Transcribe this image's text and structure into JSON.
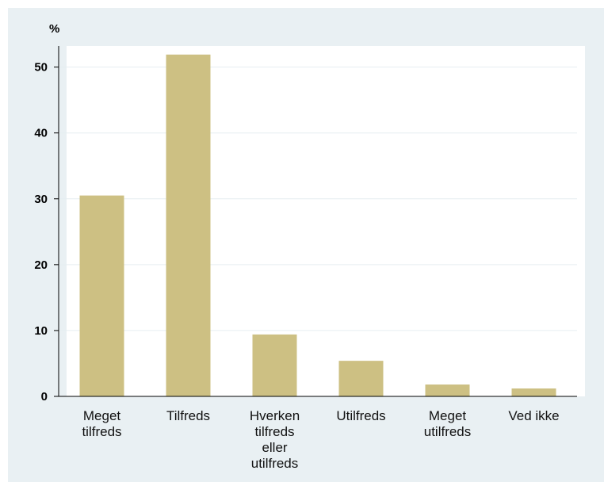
{
  "chart_data": {
    "type": "bar",
    "title": "",
    "xlabel": "",
    "ylabel": "%",
    "categories": [
      [
        "Meget",
        "tilfreds"
      ],
      [
        "Tilfreds"
      ],
      [
        "Hverken",
        "tilfreds",
        "eller",
        "utilfreds"
      ],
      [
        "Utilfreds"
      ],
      [
        "Meget",
        "utilfreds"
      ],
      [
        "Ved ikke"
      ]
    ],
    "values": [
      30.5,
      51.9,
      9.4,
      5.4,
      1.8,
      1.2
    ],
    "ylim": [
      0,
      53
    ],
    "yticks": [
      0,
      10,
      20,
      30,
      40,
      50
    ],
    "grid": true,
    "colors": {
      "bar": "#cdc083",
      "figure_background": "#e9f0f3",
      "plot_background": "#ffffff",
      "gridline": "#e6eef1",
      "axis": "#000000"
    }
  }
}
